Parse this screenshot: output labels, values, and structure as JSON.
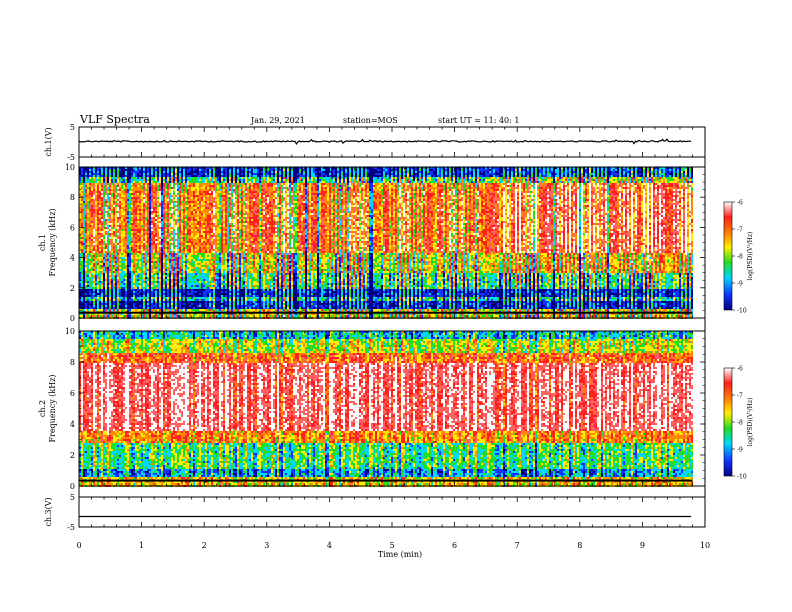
{
  "header": {
    "title": "VLF Spectra",
    "date": "Jan. 29, 2021",
    "station": "station=MOS",
    "start_ut": "start UT =  11: 40: 1"
  },
  "colorbar": {
    "label": "log(PSD)(V²/Hz)",
    "ticks": [
      "-6",
      "-7",
      "-8",
      "-9",
      "-10"
    ],
    "colors": [
      "#ffffff",
      "#ff2020",
      "#ff8a00",
      "#ffee00",
      "#22dd22",
      "#00d8ff",
      "#1133ff",
      "#000080"
    ]
  },
  "chart_data": [
    {
      "id": "ch1-waveform",
      "type": "line",
      "ylabel": "ch.1(V)",
      "ylim": [
        -5,
        5
      ],
      "ytick_labels": [
        "5",
        "-5"
      ],
      "xlim": [
        0,
        10
      ],
      "trace_level": 0.2,
      "trace_end": 9.8
    },
    {
      "id": "ch1-spectrogram",
      "type": "heatmap",
      "ylabel": "ch.1\nFrequency (kHz)",
      "ylim": [
        0,
        10
      ],
      "ytick_labels": [
        "0",
        "2",
        "4",
        "6",
        "8",
        "10"
      ],
      "xlim": [
        0,
        10
      ],
      "data_end": 9.8,
      "note": "strong emission 4.5-9 kHz with regular vertical striations; weak band 0.5-2 kHz; intensity increases after ~6.5 min"
    },
    {
      "id": "ch2-spectrogram",
      "type": "heatmap",
      "ylabel": "ch.2\nFrequency (kHz)",
      "ylim": [
        0,
        10
      ],
      "ytick_labels": [
        "0",
        "2",
        "4",
        "6",
        "8",
        "10"
      ],
      "xlim": [
        0,
        10
      ],
      "data_end": 9.8,
      "note": "very strong emission 3-8 kHz (red/white), green/blue below 3 kHz and above 8.5 kHz"
    },
    {
      "id": "ch3-waveform",
      "type": "line",
      "ylabel": "ch.3(V)",
      "ylim": [
        -5,
        5
      ],
      "ytick_labels": [
        "5",
        "-5"
      ],
      "xlim": [
        0,
        10
      ],
      "trace_level": -1.5,
      "trace_end": 9.8
    }
  ],
  "x_axis": {
    "label": "Time (min)",
    "ticks": [
      "0",
      "1",
      "2",
      "3",
      "4",
      "5",
      "6",
      "7",
      "8",
      "9",
      "10"
    ]
  }
}
